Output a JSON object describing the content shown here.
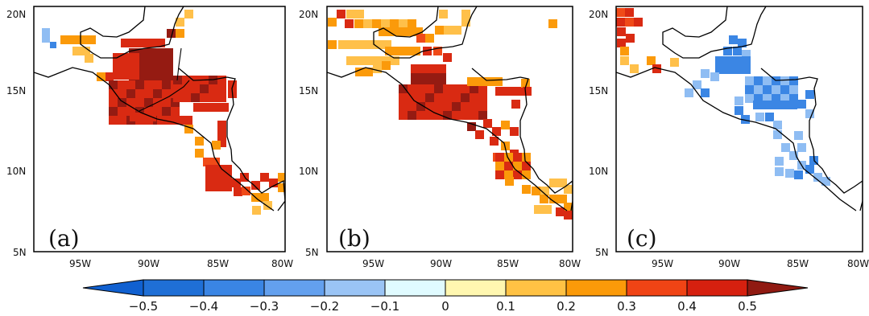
{
  "panels": [
    {
      "label": "(a)",
      "key": "a"
    },
    {
      "label": "(b)",
      "key": "b"
    },
    {
      "label": "(c)",
      "key": "c"
    }
  ],
  "lat_ticks": [
    "20N",
    "15N",
    "10N",
    "5N"
  ],
  "lon_ticks": [
    "95W",
    "90W",
    "85W",
    "80W"
  ],
  "colorbar": {
    "labels": [
      "−0.5",
      "−0.4",
      "−0.3",
      "−0.2",
      "−0.1",
      "0",
      "0.1",
      "0.2",
      "0.3",
      "0.4",
      "0.5"
    ],
    "colors": [
      "#1f6fd6",
      "#3a85e4",
      "#63a0ee",
      "#9ac4f5",
      "#e0fbff",
      "#fff7b0",
      "#ffc244",
      "#fb9a09",
      "#f04415",
      "#d6200f"
    ],
    "under_color": "#1060d0",
    "over_color": "#901a12"
  },
  "domain": {
    "lon": [
      -98,
      -80
    ],
    "lat": [
      5,
      20
    ]
  },
  "colors": {
    "darkred": "#951b12",
    "red": "#d92a12",
    "redorange": "#f04a18",
    "orange": "#fb9a0a",
    "lightorange": "#ffc04a",
    "blue": "#3b86e4",
    "lightblue": "#8fbdf3"
  }
}
